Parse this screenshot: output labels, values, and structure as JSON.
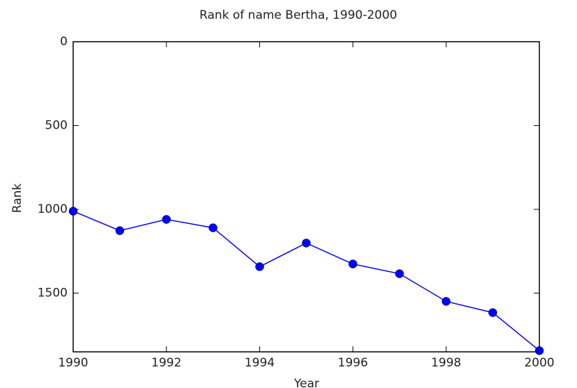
{
  "chart_data": {
    "type": "line",
    "title": "Rank of name Bertha, 1990-2000",
    "x_label": "Year",
    "y_label": "Rank",
    "x": [
      1990,
      1991,
      1992,
      1993,
      1994,
      1995,
      1996,
      1997,
      1998,
      1999,
      2000
    ],
    "series": [
      {
        "name": "Bertha",
        "color": "#0000ff",
        "marker": "o",
        "values": [
          1011,
          1127,
          1060,
          1110,
          1342,
          1201,
          1326,
          1384,
          1549,
          1616,
          1843
        ]
      }
    ],
    "xlim": [
      1990,
      2000
    ],
    "xticks": [
      1990,
      1992,
      1994,
      1996,
      1998,
      2000
    ],
    "ylim": [
      0,
      1850
    ],
    "yticks": [
      0,
      500,
      1000,
      1500
    ],
    "y_inverted": true,
    "grid": false
  }
}
